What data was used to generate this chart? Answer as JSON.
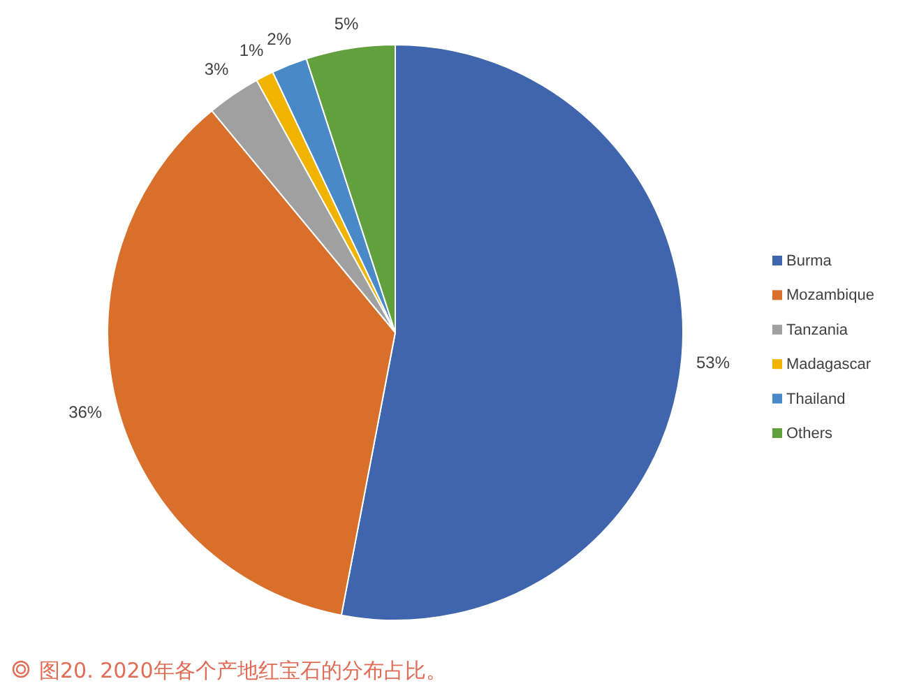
{
  "chart_data": {
    "type": "pie",
    "categories": [
      "Burma",
      "Mozambique",
      "Tanzania",
      "Madagascar",
      "Thailand",
      "Others"
    ],
    "values": [
      53,
      36,
      3,
      1,
      2,
      5
    ],
    "colors": [
      "#3f65ad",
      "#d8702c",
      "#a0a0a0",
      "#efb300",
      "#4a89c7",
      "#62a03d"
    ],
    "value_labels": [
      "53%",
      "36%",
      "3%",
      "1%",
      "2%",
      "5%"
    ],
    "legend": "right",
    "annotations": [
      "图20. 2020年各个产地红宝石的分布占比。"
    ]
  }
}
